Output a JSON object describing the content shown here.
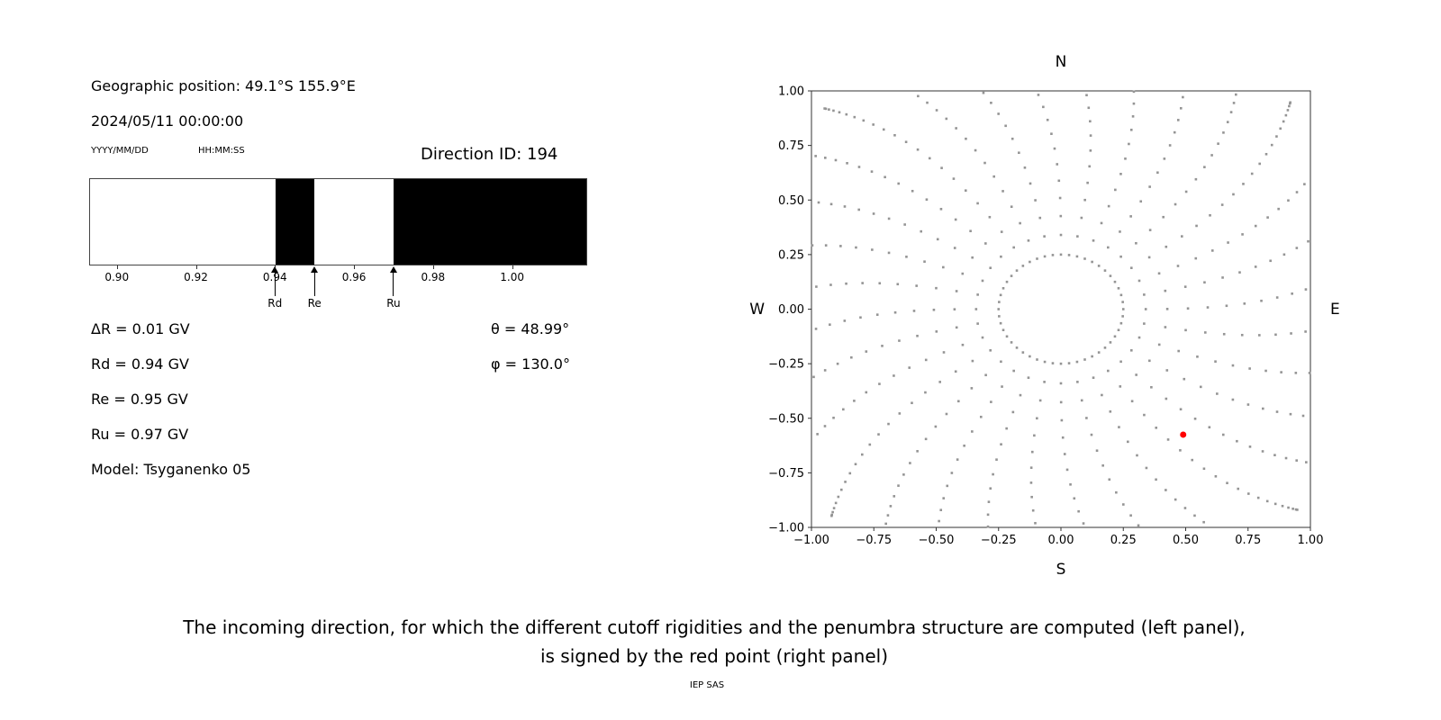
{
  "header": {
    "geo_position": "Geographic position: 49.1°S 155.9°E",
    "datetime": "2024/05/11 00:00:00",
    "date_format_hint": "YYYY/MM/DD",
    "time_format_hint": "HH:MM:SS",
    "direction_id": "Direction ID: 194"
  },
  "left_panel": {
    "delta_r": "ΔR = 0.01 GV",
    "rd": "Rd = 0.94 GV",
    "re": "Re = 0.95 GV",
    "ru": "Ru = 0.97 GV",
    "model": "Model: Tsyganenko 05",
    "theta": "θ = 48.99°",
    "phi": "φ = 130.0°"
  },
  "caption": {
    "line1": "The incoming direction, for which the different cutoff rigidities and the penumbra structure are computed (left panel),",
    "line2": "is signed by the red point (right panel)",
    "credit": "IEP SAS"
  },
  "chart_data": [
    {
      "type": "bar",
      "name": "penumbra-structure",
      "description": "Cosmic-ray penumbra: black bands are forbidden rigidity intervals, white allowed",
      "xlim": [
        0.893,
        1.019
      ],
      "xticks": [
        0.9,
        0.92,
        0.94,
        0.96,
        0.98,
        1.0
      ],
      "xtick_labels": [
        "0.90",
        "0.92",
        "0.94",
        "0.96",
        "0.98",
        "1.00"
      ],
      "forbidden_bands": [
        [
          0.94,
          0.95
        ],
        [
          0.97,
          1.019
        ]
      ],
      "forbidden_color": "#000000",
      "allowed_color": "#ffffff",
      "markers": [
        {
          "label": "Rd",
          "x": 0.94
        },
        {
          "label": "Re",
          "x": 0.95
        },
        {
          "label": "Ru",
          "x": 0.97
        }
      ],
      "values": {
        "delta_R_GV": 0.01,
        "Rd_GV": 0.94,
        "Re_GV": 0.95,
        "Ru_GV": 0.97
      }
    },
    {
      "type": "scatter",
      "name": "incoming-directions",
      "description": "Grid of incoming directions (gray dots, radial pattern); red point marks the selected direction",
      "xlim": [
        -1,
        1
      ],
      "ylim": [
        -1,
        1
      ],
      "xticks": [
        -1.0,
        -0.75,
        -0.5,
        -0.25,
        0.0,
        0.25,
        0.5,
        0.75,
        1.0
      ],
      "xtick_labels": [
        "−1.00",
        "−0.75",
        "−0.50",
        "−0.25",
        "0.00",
        "0.25",
        "0.50",
        "0.75",
        "1.00"
      ],
      "yticks": [
        -1.0,
        -0.75,
        -0.5,
        -0.25,
        0.0,
        0.25,
        0.5,
        0.75,
        1.0
      ],
      "ytick_labels": [
        "−1.00",
        "−0.75",
        "−0.50",
        "−0.25",
        "0.00",
        "0.25",
        "0.50",
        "0.75",
        "1.00"
      ],
      "compass": {
        "top": "N",
        "bottom": "S",
        "left": "W",
        "right": "E"
      },
      "grid_pattern": {
        "rays": 32,
        "ray_r_start": 0.34,
        "ray_r_end": 1.32,
        "points_per_ray": 20,
        "cluster_exponent": 1.8,
        "twist": 0.22,
        "inner_ring_radius": 0.25,
        "inner_ring_points": 48,
        "dot_color": "#949494",
        "dot_size": 2.6
      },
      "red_point": {
        "x": 0.49,
        "y": -0.575,
        "color": "#ff0000",
        "theta_deg": 48.99,
        "phi_deg": 130.0
      }
    }
  ]
}
